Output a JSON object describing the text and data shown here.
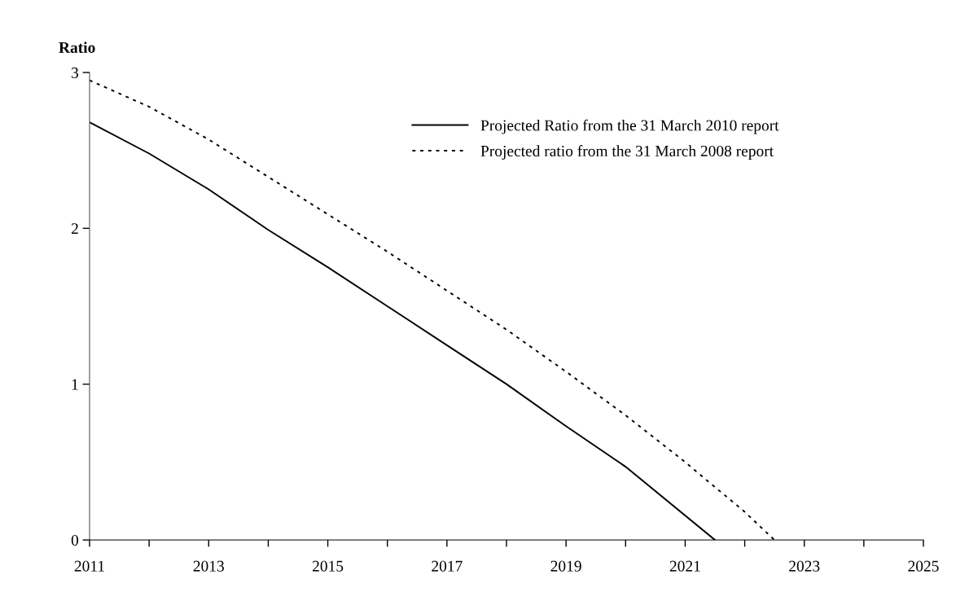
{
  "chart_data": {
    "type": "line",
    "ylabel": "Ratio",
    "xlim": [
      2011,
      2025
    ],
    "xticks": [
      2011,
      {
        "value": 2012,
        "label": null
      },
      2013,
      {
        "value": 2014,
        "label": null
      },
      2015,
      {
        "value": 2016,
        "label": null
      },
      2017,
      {
        "value": 2018,
        "label": null
      },
      2019,
      {
        "value": 2020,
        "label": null
      },
      2021,
      {
        "value": 2022,
        "label": null
      },
      2023,
      {
        "value": 2024,
        "label": null
      },
      2025
    ],
    "ylim": [
      0,
      3
    ],
    "yticks": [
      0,
      1,
      2,
      3
    ],
    "grid": false,
    "legend": "top",
    "marker": "none",
    "series": [
      {
        "name": "Projected Ratio from the 31 March 2010 report",
        "color": "#000000",
        "line_style": "solid",
        "x": [
          2011,
          2012,
          2013,
          2014,
          2015,
          2016,
          2017,
          2018,
          2019,
          2020,
          2021.5
        ],
        "values": [
          2.68,
          2.48,
          2.25,
          1.99,
          1.75,
          1.5,
          1.25,
          1.0,
          0.73,
          0.47,
          0
        ]
      },
      {
        "name": "Projected ratio from the 31 March 2008 report",
        "color": "#000000",
        "line_style": "dotted",
        "x": [
          2011,
          2012,
          2013,
          2014,
          2015,
          2016,
          2017,
          2018,
          2019,
          2020,
          2021,
          2022,
          2022.5
        ],
        "values": [
          2.95,
          2.78,
          2.57,
          2.33,
          2.09,
          1.85,
          1.6,
          1.35,
          1.08,
          0.8,
          0.5,
          0.18,
          0
        ]
      }
    ]
  }
}
